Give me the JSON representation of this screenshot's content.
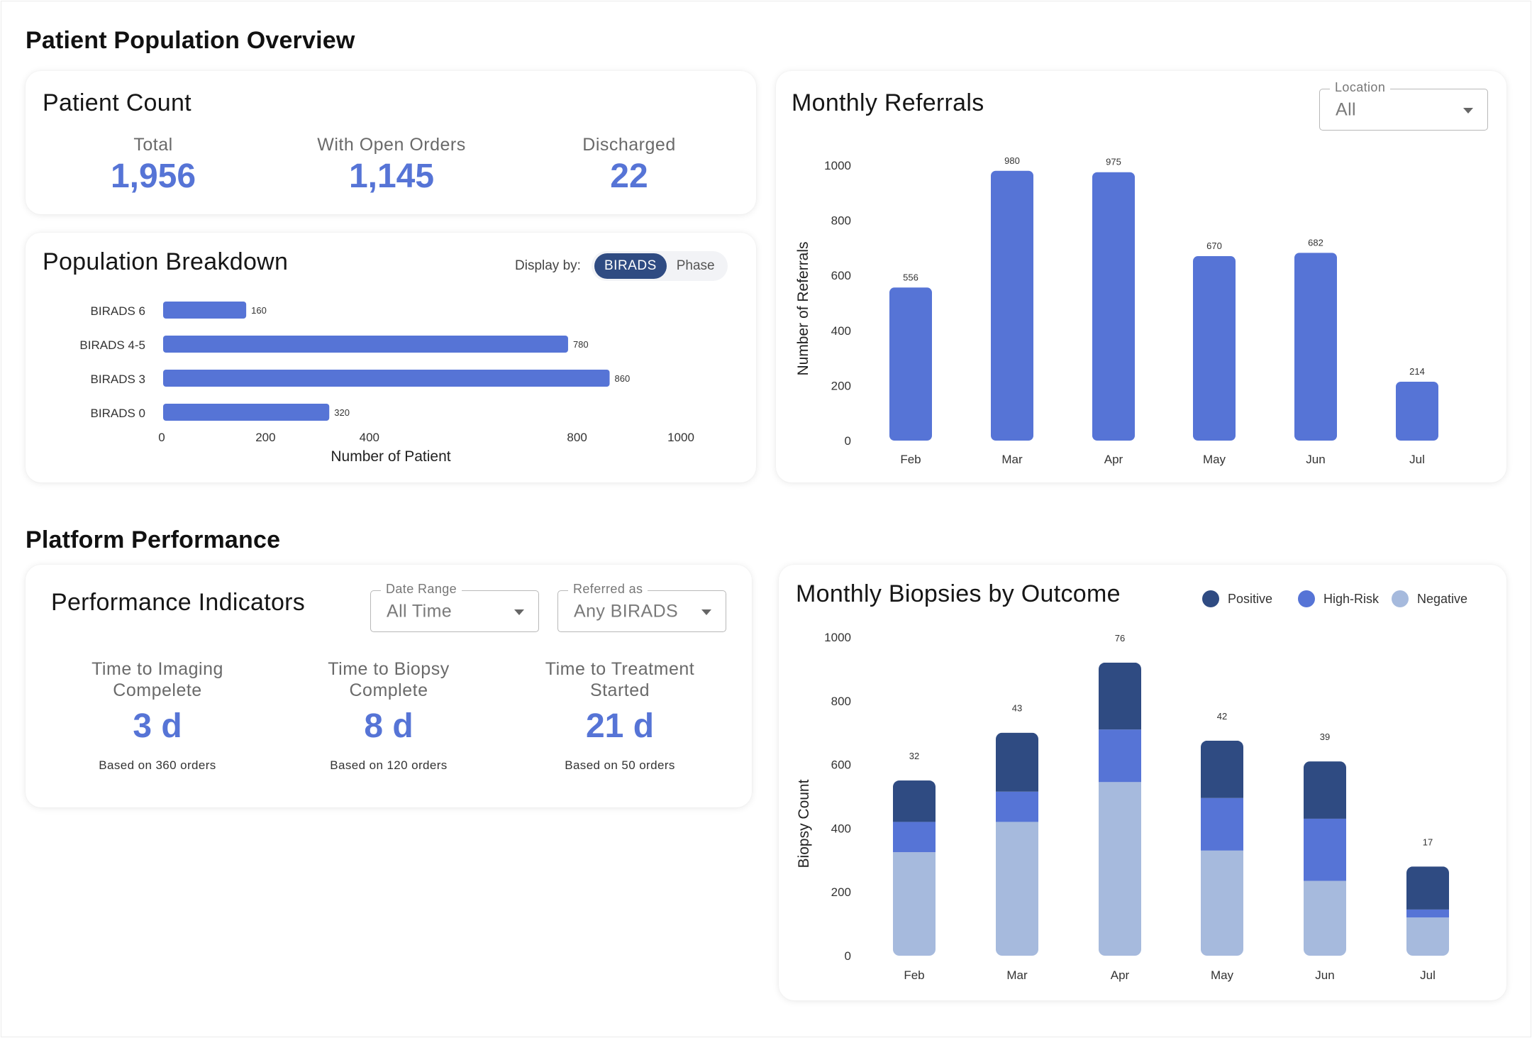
{
  "sections": {
    "population_title": "Patient Population Overview",
    "performance_title": "Platform Performance"
  },
  "patient_count": {
    "title": "Patient Count",
    "stats": [
      {
        "label": "Total",
        "value": "1,956"
      },
      {
        "label": "With Open Orders",
        "value": "1,145"
      },
      {
        "label": "Discharged",
        "value": "22"
      }
    ]
  },
  "population_breakdown": {
    "title": "Population Breakdown",
    "display_by_label": "Display by:",
    "toggle": {
      "active": "BIRADS",
      "other": "Phase"
    }
  },
  "monthly_referrals": {
    "title": "Monthly Referrals",
    "location_filter": {
      "legend": "Location",
      "value": "All"
    }
  },
  "performance": {
    "title": "Performance Indicators",
    "date_range": {
      "legend": "Date Range",
      "value": "All Time"
    },
    "referred_as": {
      "legend": "Referred as",
      "value": "Any BIRADS"
    },
    "kpis": [
      {
        "label_line1": "Time to Imaging",
        "label_line2": "Compelete",
        "value": "3 d",
        "sub": "Based on 360 orders"
      },
      {
        "label_line1": "Time to Biopsy",
        "label_line2": "Complete",
        "value": "8 d",
        "sub": "Based on 120 orders"
      },
      {
        "label_line1": "Time to Treatment",
        "label_line2": "Started",
        "value": "21 d",
        "sub": "Based on 50 orders"
      }
    ]
  },
  "biopsies": {
    "title": "Monthly Biopsies by Outcome"
  },
  "colors": {
    "bar": "#5674d6",
    "positive": "#2f4b82",
    "high_risk": "#5674d6",
    "negative": "#a6badd",
    "axis_text": "#333333"
  },
  "chart_data": [
    {
      "id": "population",
      "type": "bar",
      "orientation": "horizontal",
      "categories": [
        "BIRADS 6",
        "BIRADS 4-5",
        "BIRADS 3",
        "BIRADS 0"
      ],
      "values": [
        160,
        780,
        860,
        320
      ],
      "xlabel": "Number of Patient",
      "ylabel": "",
      "xlim": [
        0,
        1000
      ],
      "xticks": [
        0,
        200,
        400,
        800,
        1000
      ]
    },
    {
      "id": "referrals",
      "type": "bar",
      "categories": [
        "Feb",
        "Mar",
        "Apr",
        "May",
        "Jun",
        "Jul"
      ],
      "values": [
        556,
        980,
        975,
        670,
        682,
        214
      ],
      "xlabel": "",
      "ylabel": "Number of Referrals",
      "ylim": [
        0,
        1000
      ],
      "yticks": [
        0,
        200,
        400,
        600,
        800,
        1000
      ]
    },
    {
      "id": "biopsies",
      "type": "bar",
      "stacked": true,
      "categories": [
        "Feb",
        "Mar",
        "Apr",
        "May",
        "Jun",
        "Jul"
      ],
      "series": [
        {
          "name": "Negative",
          "values": [
            325,
            420,
            545,
            330,
            235,
            120
          ]
        },
        {
          "name": "High-Risk",
          "values": [
            95,
            95,
            165,
            165,
            195,
            25
          ]
        },
        {
          "name": "Positive",
          "values": [
            130,
            185,
            210,
            180,
            180,
            135
          ]
        }
      ],
      "top_labels": [
        32,
        43,
        76,
        42,
        39,
        17
      ],
      "legend": [
        "Positive",
        "High-Risk",
        "Negative"
      ],
      "legend_position": "top-right",
      "xlabel": "",
      "ylabel": "Biopsy Count",
      "ylim": [
        0,
        1000
      ],
      "yticks": [
        0,
        200,
        400,
        600,
        800,
        1000
      ]
    }
  ]
}
